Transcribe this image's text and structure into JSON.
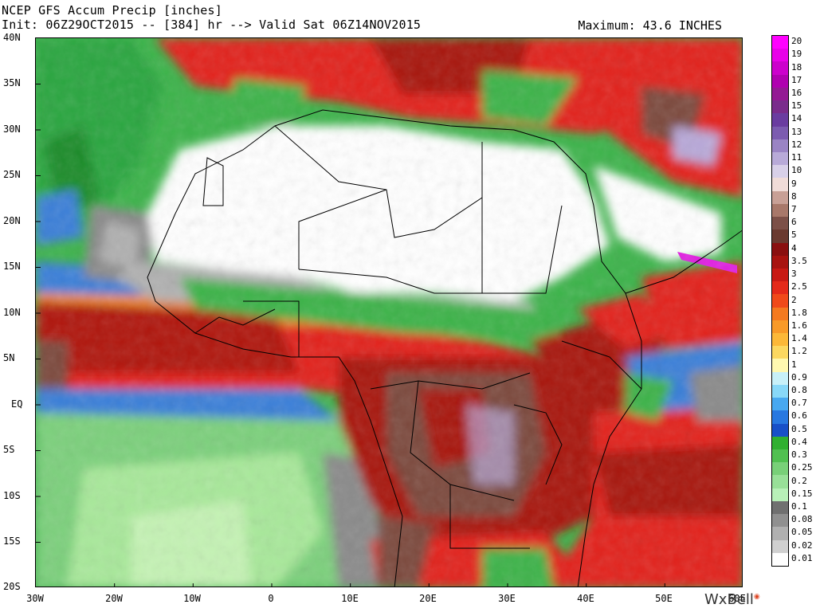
{
  "header": {
    "title": "NCEP GFS Accum Precip [inches]",
    "subtitle": "Init: 06Z29OCT2015 -- [384] hr --> Valid Sat 06Z14NOV2015",
    "maximum": "Maximum: 43.6 INCHES"
  },
  "map": {
    "lat_labels": [
      "40N",
      "35N",
      "30N",
      "25N",
      "20N",
      "15N",
      "10N",
      "5N",
      "EQ",
      "5S",
      "10S",
      "15S",
      "20S"
    ],
    "lon_labels": [
      "30W",
      "20W",
      "10W",
      "0",
      "10E",
      "20E",
      "30E",
      "40E",
      "50E",
      "60E"
    ],
    "region": "Africa",
    "colors": {
      "ocean_dry": "#a8e89a",
      "green": "#3cb34a",
      "dark_green": "#1a9c2a",
      "blue": "#3a7fd8",
      "yellow": "#fff9b0",
      "orange": "#f28c2a",
      "red": "#e2231a",
      "dark_red": "#a8120e",
      "brown": "#7b4a3e",
      "gray": "#8a8a8a",
      "light_gray": "#c8c8c8",
      "white": "#ffffff",
      "lavender": "#b8a8d8",
      "magenta": "#e020e0"
    }
  },
  "colorbar": {
    "labels": [
      "20",
      "19",
      "18",
      "17",
      "16",
      "15",
      "14",
      "13",
      "12",
      "11",
      "10",
      "9",
      "8",
      "7",
      "6",
      "5",
      "4",
      "3.5",
      "3",
      "2.5",
      "2",
      "1.8",
      "1.6",
      "1.4",
      "1.2",
      "1",
      "0.9",
      "0.8",
      "0.7",
      "0.6",
      "0.5",
      "0.4",
      "0.3",
      "0.25",
      "0.2",
      "0.15",
      "0.1",
      "0.08",
      "0.05",
      "0.02",
      "0.01"
    ],
    "colors": [
      "#ff00ff",
      "#e800e8",
      "#cc00cc",
      "#b000b0",
      "#941a94",
      "#7a2c8c",
      "#6a3ca0",
      "#7c5cb0",
      "#9a84c4",
      "#b8aad8",
      "#d8d0e8",
      "#f0dcd8",
      "#c8a096",
      "#a8786a",
      "#7c5048",
      "#6a3a30",
      "#8a1010",
      "#a81410",
      "#c81a14",
      "#e42a1a",
      "#f04a1a",
      "#f47a20",
      "#f89a28",
      "#fcb838",
      "#fcd860",
      "#fff8b0",
      "#c8f0f8",
      "#88d8f8",
      "#48a8f0",
      "#2878e0",
      "#1850c8",
      "#30b030",
      "#50c050",
      "#78d078",
      "#98e098",
      "#b8f0b8",
      "#707070",
      "#909090",
      "#b0b0b0",
      "#d0d0d0",
      "#ffffff"
    ]
  },
  "branding": {
    "logo_text": "WxBell"
  }
}
